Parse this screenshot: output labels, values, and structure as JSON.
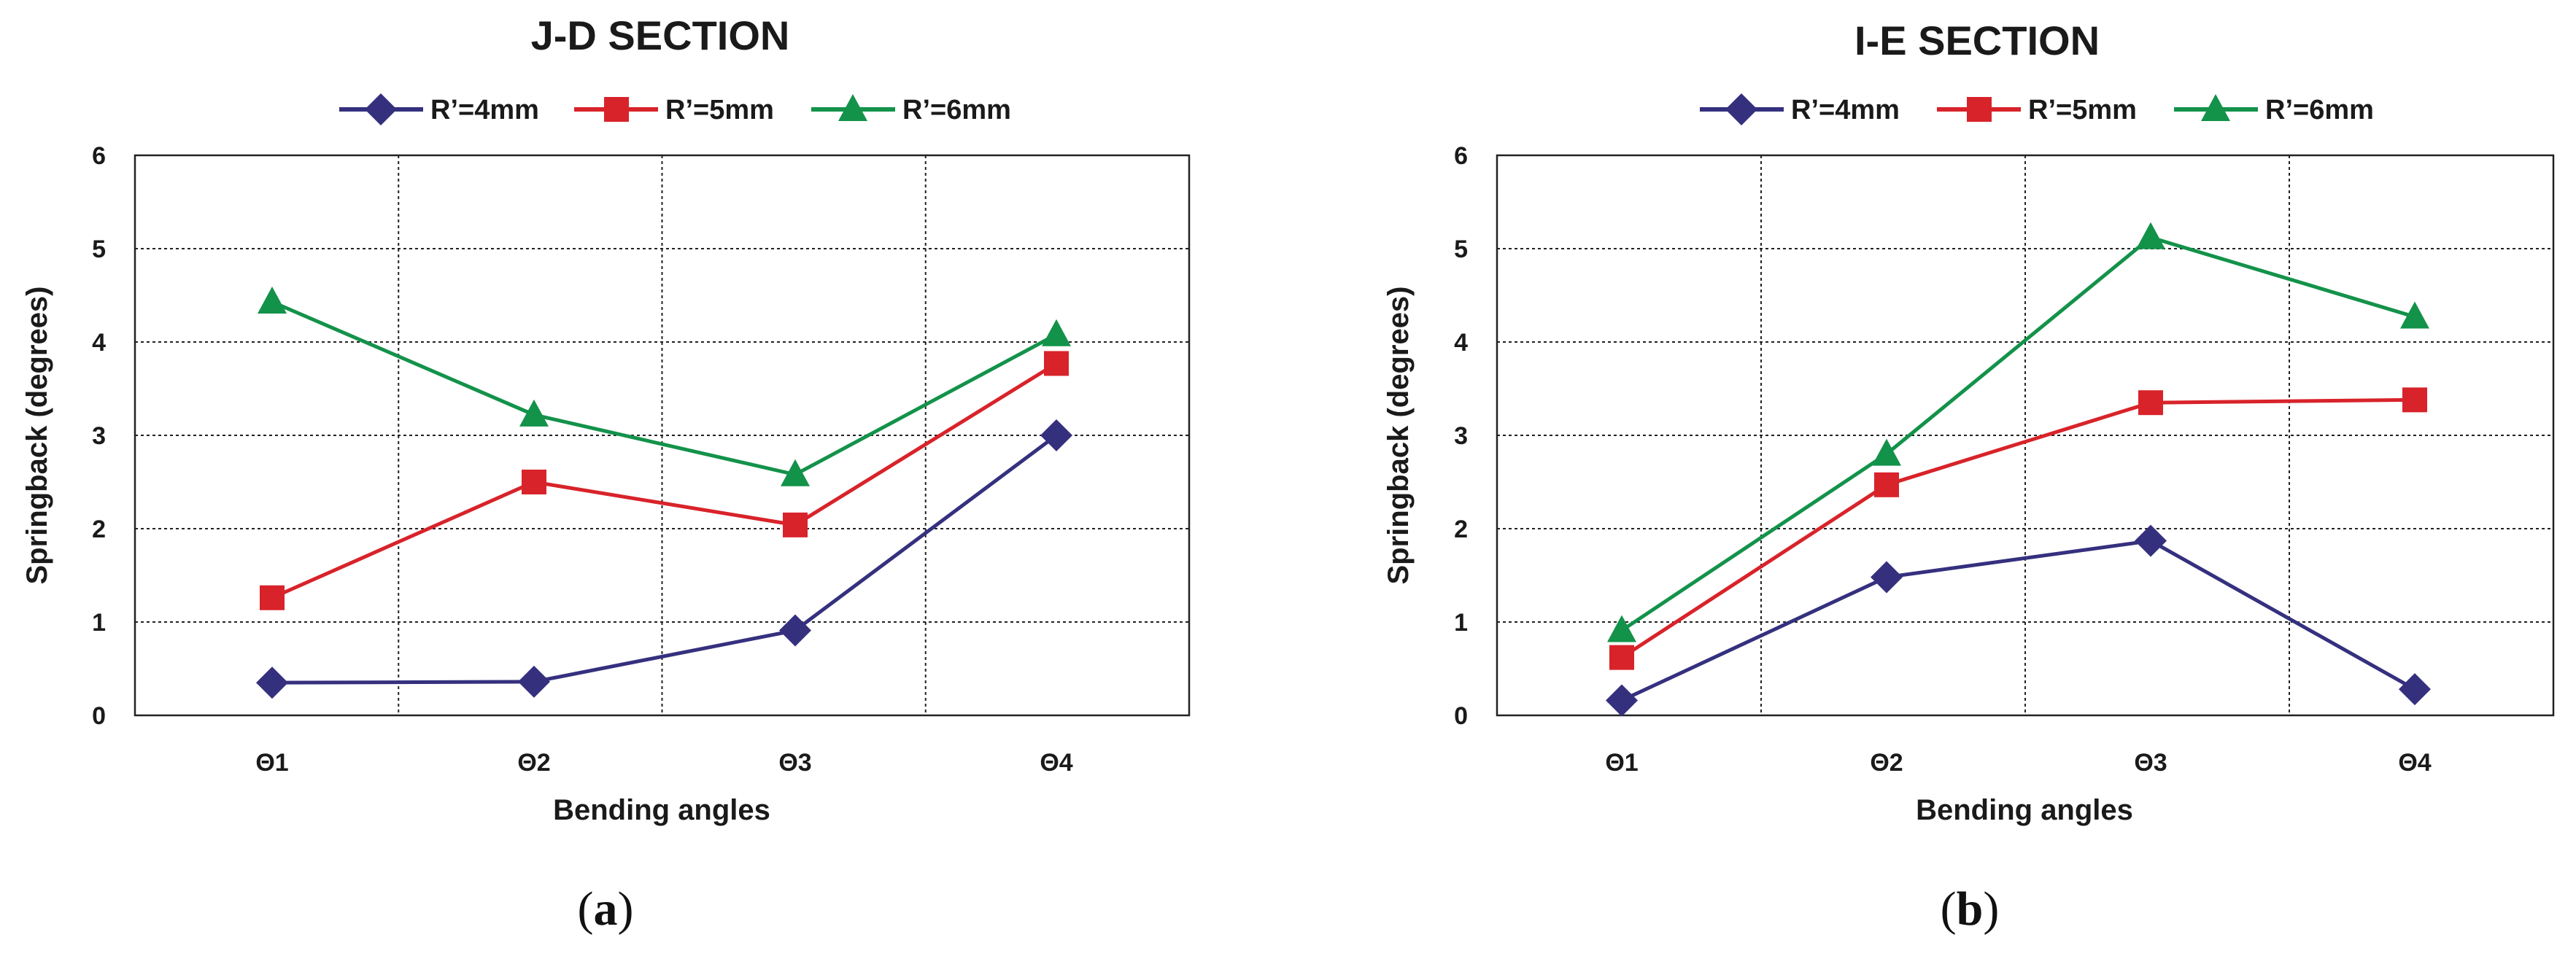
{
  "chart_data": [
    {
      "type": "line",
      "title": "J-D SECTION",
      "xlabel": "Bending angles",
      "ylabel": "Springback (degrees)",
      "categories": [
        "Θ1",
        "Θ2",
        "Θ3",
        "Θ4"
      ],
      "ylim": [
        0,
        6
      ],
      "yticks": [
        0,
        1,
        2,
        3,
        4,
        5,
        6
      ],
      "grid": true,
      "legend": "top",
      "caption": {
        "open": "(",
        "letter": "a",
        "close": ")"
      },
      "series": [
        {
          "name": "R’=4mm",
          "marker": "diamond",
          "color": "#35307e",
          "values": [
            0.35,
            0.36,
            0.91,
            3.0
          ]
        },
        {
          "name": "R’=5mm",
          "marker": "square",
          "color": "#d8232a",
          "values": [
            1.26,
            2.5,
            2.04,
            3.77
          ]
        },
        {
          "name": "R’=6mm",
          "marker": "triangle",
          "color": "#13924a",
          "values": [
            4.43,
            3.22,
            2.58,
            4.08
          ]
        }
      ]
    },
    {
      "type": "line",
      "title": "I-E SECTION",
      "xlabel": "Bending angles",
      "ylabel": "Springback (degrees)",
      "categories": [
        "Θ1",
        "Θ2",
        "Θ3",
        "Θ4"
      ],
      "ylim": [
        0,
        6
      ],
      "yticks": [
        0,
        1,
        2,
        3,
        4,
        5,
        6
      ],
      "grid": true,
      "legend": "top",
      "caption": {
        "open": "(",
        "letter": "b",
        "close": ")"
      },
      "series": [
        {
          "name": "R’=4mm",
          "marker": "diamond",
          "color": "#35307e",
          "values": [
            0.16,
            1.48,
            1.87,
            0.28
          ]
        },
        {
          "name": "R’=5mm",
          "marker": "square",
          "color": "#d8232a",
          "values": [
            0.62,
            2.47,
            3.35,
            3.38
          ]
        },
        {
          "name": "R’=6mm",
          "marker": "triangle",
          "color": "#13924a",
          "values": [
            0.91,
            2.8,
            5.12,
            4.27
          ]
        }
      ]
    }
  ]
}
